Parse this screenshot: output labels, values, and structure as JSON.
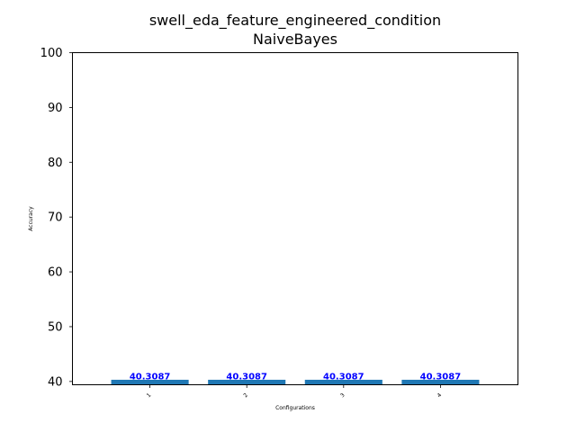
{
  "chart_data": {
    "type": "bar",
    "title": "swell_eda_feature_engineered_condition",
    "subtitle": "NaiveBayes",
    "xlabel": "Configurations",
    "ylabel": "Accuracy",
    "categories": [
      "1",
      "2",
      "3",
      "4"
    ],
    "values": [
      40.3087,
      40.3087,
      40.3087,
      40.3087
    ],
    "data_labels": [
      "40.3087",
      "40.3087",
      "40.3087",
      "40.3087"
    ],
    "ylim": [
      39.4,
      100
    ],
    "yticks": [
      40,
      50,
      60,
      70,
      80,
      90,
      100
    ],
    "grid": false,
    "bar_color": "#1f77b4",
    "label_color": "#0000ff"
  }
}
